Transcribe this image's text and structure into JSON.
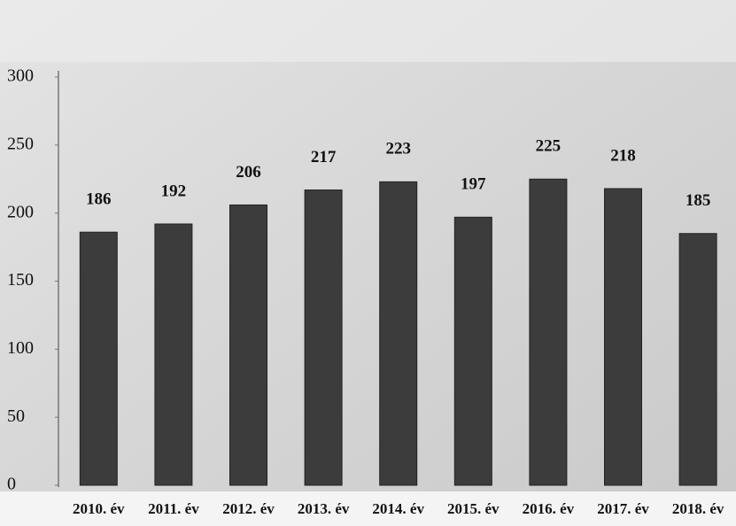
{
  "chart_data": {
    "type": "bar",
    "categories": [
      "2010. év",
      "2011. év",
      "2012. év",
      "2013. év",
      "2014. év",
      "2015. év",
      "2016. év",
      "2017. év",
      "2018. év"
    ],
    "values": [
      186,
      192,
      206,
      217,
      223,
      197,
      225,
      218,
      185
    ],
    "color": "#3c3c3c",
    "ylim": [
      0,
      300
    ],
    "yticks": [
      0,
      50,
      100,
      150,
      200,
      250,
      300
    ],
    "grid": false
  }
}
